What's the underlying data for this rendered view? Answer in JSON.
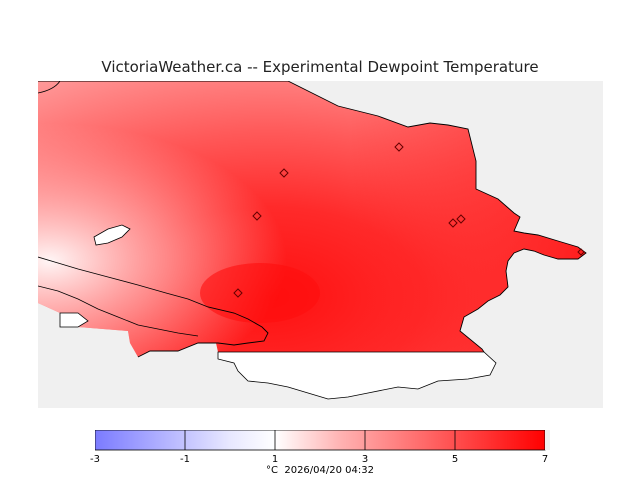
{
  "title": "VictoriaWeather.ca -- Experimental Dewpoint Temperature",
  "legend": {
    "min": -3,
    "max": 7,
    "ticks": [
      "-3",
      "-1",
      "1",
      "3",
      "5",
      "7"
    ],
    "colors": {
      "cold": "#7b7bff",
      "zero": "#ffffff",
      "warm": "#ff0000"
    }
  },
  "caption": {
    "unit": "°C",
    "timestamp": "2026/04/20 04:32"
  },
  "colors": {
    "sea": "#f0f0f0",
    "coast": "#000000",
    "hot": "#ff1a1a"
  }
}
